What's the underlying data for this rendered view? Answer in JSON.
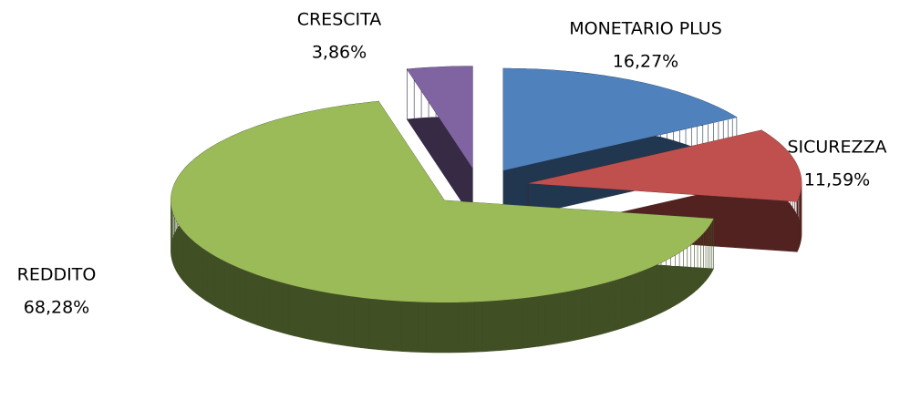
{
  "chart_data": {
    "type": "pie",
    "categories": [
      "MONETARIO PLUS",
      "SICUREZZA",
      "REDDITO",
      "CRESCITA"
    ],
    "values": [
      16.27,
      11.59,
      68.28,
      3.86
    ],
    "value_labels": [
      "16,27%",
      "11,59%",
      "68,28%",
      "3,86%"
    ],
    "colors": [
      "#4f81bd",
      "#c0504d",
      "#9bbb59",
      "#8064a2"
    ]
  }
}
